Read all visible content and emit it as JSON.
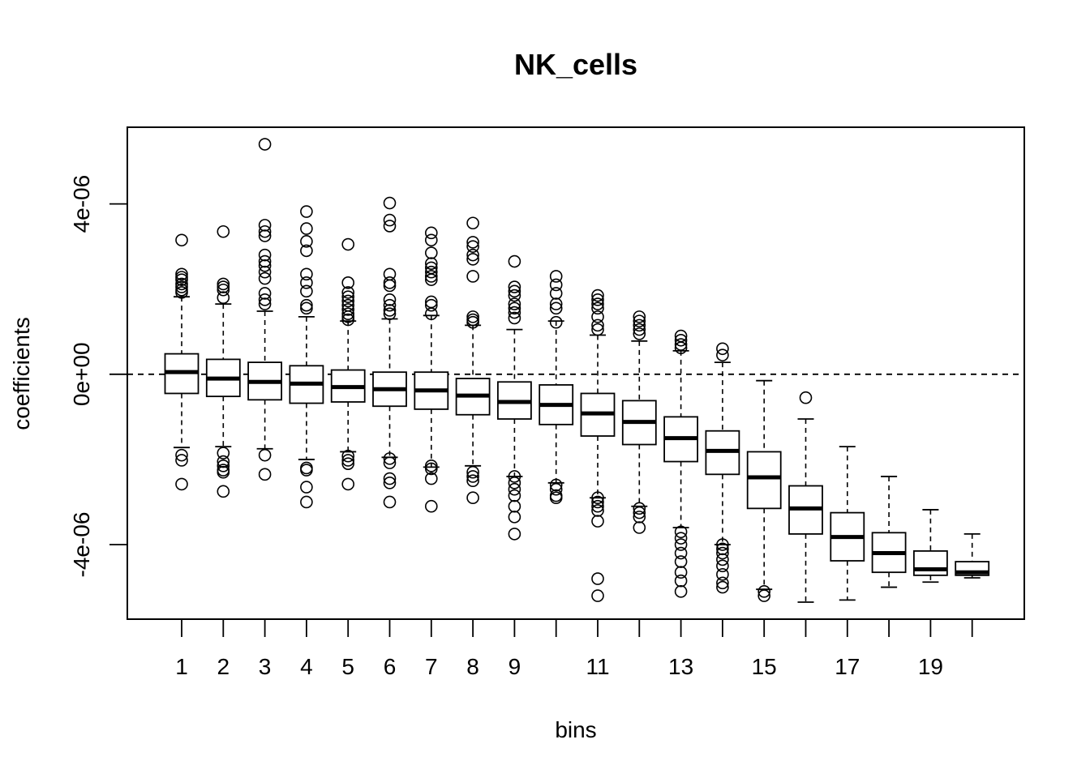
{
  "chart_data": {
    "type": "boxplot",
    "title": "NK_cells",
    "xlabel": "bins",
    "ylabel": "coefficients",
    "categories": [
      "1",
      "2",
      "3",
      "4",
      "5",
      "6",
      "7",
      "8",
      "9",
      "10",
      "11",
      "12",
      "13",
      "14",
      "15",
      "16",
      "17",
      "18",
      "19",
      "20"
    ],
    "x_tick_labels_shown": [
      "1",
      "2",
      "3",
      "4",
      "5",
      "6",
      "7",
      "8",
      "9",
      "11",
      "13",
      "15",
      "17",
      "19"
    ],
    "y_ticks": [
      -4e-06,
      0,
      4e-06
    ],
    "y_tick_labels": [
      "-4e-06",
      "0e+00",
      "4e-06"
    ],
    "ylim": [
      -5.75e-06,
      5.8e-06
    ],
    "reference_line": {
      "y": 0,
      "style": "dashed"
    },
    "grid": false,
    "boxes": [
      {
        "bin": "1",
        "whisker_low": -1.72e-06,
        "q1": -4.5e-07,
        "median": 5e-08,
        "q3": 4.8e-07,
        "whisker_high": 1.82e-06,
        "outliers": [
          3.15e-06,
          2.35e-06,
          2.28e-06,
          2.22e-06,
          2.12e-06,
          2.05e-06,
          1.98e-06,
          1.92e-06,
          -1.9e-06,
          -2.02e-06,
          -2.58e-06
        ]
      },
      {
        "bin": "2",
        "whisker_low": -1.7e-06,
        "q1": -5.2e-07,
        "median": -1e-07,
        "q3": 3.5e-07,
        "whisker_high": 1.65e-06,
        "outliers": [
          3.35e-06,
          2.12e-06,
          2.05e-06,
          1.98e-06,
          1.8e-06,
          -1.85e-06,
          -2.05e-06,
          -2.15e-06,
          -2.25e-06,
          -2.3e-06,
          -2.75e-06
        ]
      },
      {
        "bin": "3",
        "whisker_low": -1.75e-06,
        "q1": -6e-07,
        "median": -1.8e-07,
        "q3": 2.8e-07,
        "whisker_high": 1.48e-06,
        "outliers": [
          5.4e-06,
          3.5e-06,
          3.35e-06,
          3.25e-06,
          2.8e-06,
          2.65e-06,
          2.55e-06,
          2.4e-06,
          2.25e-06,
          1.9e-06,
          1.75e-06,
          1.65e-06,
          -1.9e-06,
          -2.35e-06
        ]
      },
      {
        "bin": "4",
        "whisker_low": -2e-06,
        "q1": -6.8e-07,
        "median": -2.2e-07,
        "q3": 2e-07,
        "whisker_high": 1.35e-06,
        "outliers": [
          3.82e-06,
          3.42e-06,
          3.12e-06,
          2.9e-06,
          2.35e-06,
          2.15e-06,
          1.95e-06,
          1.62e-06,
          1.55e-06,
          -2.2e-06,
          -2.25e-06,
          -2.65e-06,
          -3e-06
        ]
      },
      {
        "bin": "5",
        "whisker_low": -1.82e-06,
        "q1": -6.5e-07,
        "median": -3e-07,
        "q3": 1e-07,
        "whisker_high": 1.25e-06,
        "outliers": [
          3.05e-06,
          2.15e-06,
          1.92e-06,
          1.82e-06,
          1.72e-06,
          1.62e-06,
          1.52e-06,
          1.42e-06,
          1.35e-06,
          1.28e-06,
          -1.92e-06,
          -2.02e-06,
          -2.1e-06,
          -2.58e-06
        ]
      },
      {
        "bin": "6",
        "whisker_low": -1.95e-06,
        "q1": -7.5e-07,
        "median": -3.5e-07,
        "q3": 5e-08,
        "whisker_high": 1.3e-06,
        "outliers": [
          4.02e-06,
          3.62e-06,
          3.48e-06,
          2.35e-06,
          2.15e-06,
          2.08e-06,
          1.75e-06,
          1.62e-06,
          1.5e-06,
          1.42e-06,
          -1.98e-06,
          -2.08e-06,
          -2.45e-06,
          -2.55e-06,
          -3e-06
        ]
      },
      {
        "bin": "7",
        "whisker_low": -2.18e-06,
        "q1": -8.2e-07,
        "median": -3.8e-07,
        "q3": 5e-08,
        "whisker_high": 1.38e-06,
        "outliers": [
          3.32e-06,
          3.15e-06,
          2.85e-06,
          2.6e-06,
          2.5e-06,
          2.4e-06,
          2.3e-06,
          2.22e-06,
          1.7e-06,
          1.62e-06,
          1.42e-06,
          -2.15e-06,
          -2.22e-06,
          -2.45e-06,
          -3.1e-06
        ]
      },
      {
        "bin": "8",
        "whisker_low": -2.15e-06,
        "q1": -9.5e-07,
        "median": -5e-07,
        "q3": -1e-07,
        "whisker_high": 1.15e-06,
        "outliers": [
          3.55e-06,
          3.1e-06,
          3e-06,
          2.8e-06,
          2.7e-06,
          2.3e-06,
          1.35e-06,
          1.28e-06,
          1.22e-06,
          -2.3e-06,
          -2.4e-06,
          -2.5e-06,
          -2.9e-06
        ]
      },
      {
        "bin": "9",
        "whisker_low": -2.4e-06,
        "q1": -1.05e-06,
        "median": -6.5e-07,
        "q3": -1.8e-07,
        "whisker_high": 1.05e-06,
        "outliers": [
          2.65e-06,
          2.05e-06,
          1.95e-06,
          1.85e-06,
          1.65e-06,
          1.55e-06,
          1.45e-06,
          1.32e-06,
          -2.4e-06,
          -2.55e-06,
          -2.7e-06,
          -2.85e-06,
          -3.1e-06,
          -3.35e-06,
          -3.75e-06
        ]
      },
      {
        "bin": "10",
        "whisker_low": -2.55e-06,
        "q1": -1.18e-06,
        "median": -7.2e-07,
        "q3": -2.5e-07,
        "whisker_high": 1.25e-06,
        "outliers": [
          2.3e-06,
          2.1e-06,
          1.9e-06,
          1.65e-06,
          1.55e-06,
          1.22e-06,
          -2.6e-06,
          -2.7e-06,
          -2.85e-06,
          -2.9e-06
        ]
      },
      {
        "bin": "11",
        "whisker_low": -2.9e-06,
        "q1": -1.45e-06,
        "median": -9.2e-07,
        "q3": -4.5e-07,
        "whisker_high": 9.2e-07,
        "outliers": [
          1.85e-06,
          1.75e-06,
          1.65e-06,
          1.55e-06,
          1.35e-06,
          1.15e-06,
          1.05e-06,
          -2.9e-06,
          -3e-06,
          -3.1e-06,
          -3.2e-06,
          -3.45e-06,
          -4.8e-06,
          -5.2e-06
        ]
      },
      {
        "bin": "12",
        "whisker_low": -3.1e-06,
        "q1": -1.65e-06,
        "median": -1.12e-06,
        "q3": -6.2e-07,
        "whisker_high": 7.8e-07,
        "outliers": [
          1.35e-06,
          1.25e-06,
          1.15e-06,
          1.05e-06,
          9.5e-07,
          -3.15e-06,
          -3.25e-06,
          -3.35e-06,
          -3.6e-06
        ]
      },
      {
        "bin": "13",
        "whisker_low": -3.6e-06,
        "q1": -2.05e-06,
        "median": -1.5e-06,
        "q3": -1e-06,
        "whisker_high": 5.5e-07,
        "outliers": [
          9e-07,
          8e-07,
          7e-07,
          6.2e-07,
          -3.7e-06,
          -3.85e-06,
          -4e-06,
          -4.2e-06,
          -4.4e-06,
          -4.65e-06,
          -4.85e-06,
          -5.1e-06
        ]
      },
      {
        "bin": "14",
        "whisker_low": -4e-06,
        "q1": -2.35e-06,
        "median": -1.8e-06,
        "q3": -1.33e-06,
        "whisker_high": 2.8e-07,
        "outliers": [
          6e-07,
          4.5e-07,
          -4e-06,
          -4.1e-06,
          -4.2e-06,
          -4.35e-06,
          -4.5e-06,
          -4.7e-06,
          -4.9e-06,
          -5e-06
        ]
      },
      {
        "bin": "15",
        "whisker_low": -5.05e-06,
        "q1": -3.15e-06,
        "median": -2.42e-06,
        "q3": -1.82e-06,
        "whisker_high": -1.5e-07,
        "outliers": [
          -5.1e-06,
          -5.2e-06
        ]
      },
      {
        "bin": "16",
        "whisker_low": -5.35e-06,
        "q1": -3.75e-06,
        "median": -3.15e-06,
        "q3": -2.62e-06,
        "whisker_high": -1.05e-06,
        "outliers": [
          -5.5e-07
        ]
      },
      {
        "bin": "17",
        "whisker_low": -5.3e-06,
        "q1": -4.38e-06,
        "median": -3.82e-06,
        "q3": -3.25e-06,
        "whisker_high": -1.7e-06,
        "outliers": []
      },
      {
        "bin": "18",
        "whisker_low": -5e-06,
        "q1": -4.65e-06,
        "median": -4.2e-06,
        "q3": -3.72e-06,
        "whisker_high": -2.4e-06,
        "outliers": []
      },
      {
        "bin": "19",
        "whisker_low": -4.88e-06,
        "q1": -4.72e-06,
        "median": -4.58e-06,
        "q3": -4.15e-06,
        "whisker_high": -3.18e-06,
        "outliers": []
      },
      {
        "bin": "20",
        "whisker_low": -4.78e-06,
        "q1": -4.72e-06,
        "median": -4.65e-06,
        "q3": -4.4e-06,
        "whisker_high": -3.75e-06,
        "outliers": []
      }
    ]
  }
}
